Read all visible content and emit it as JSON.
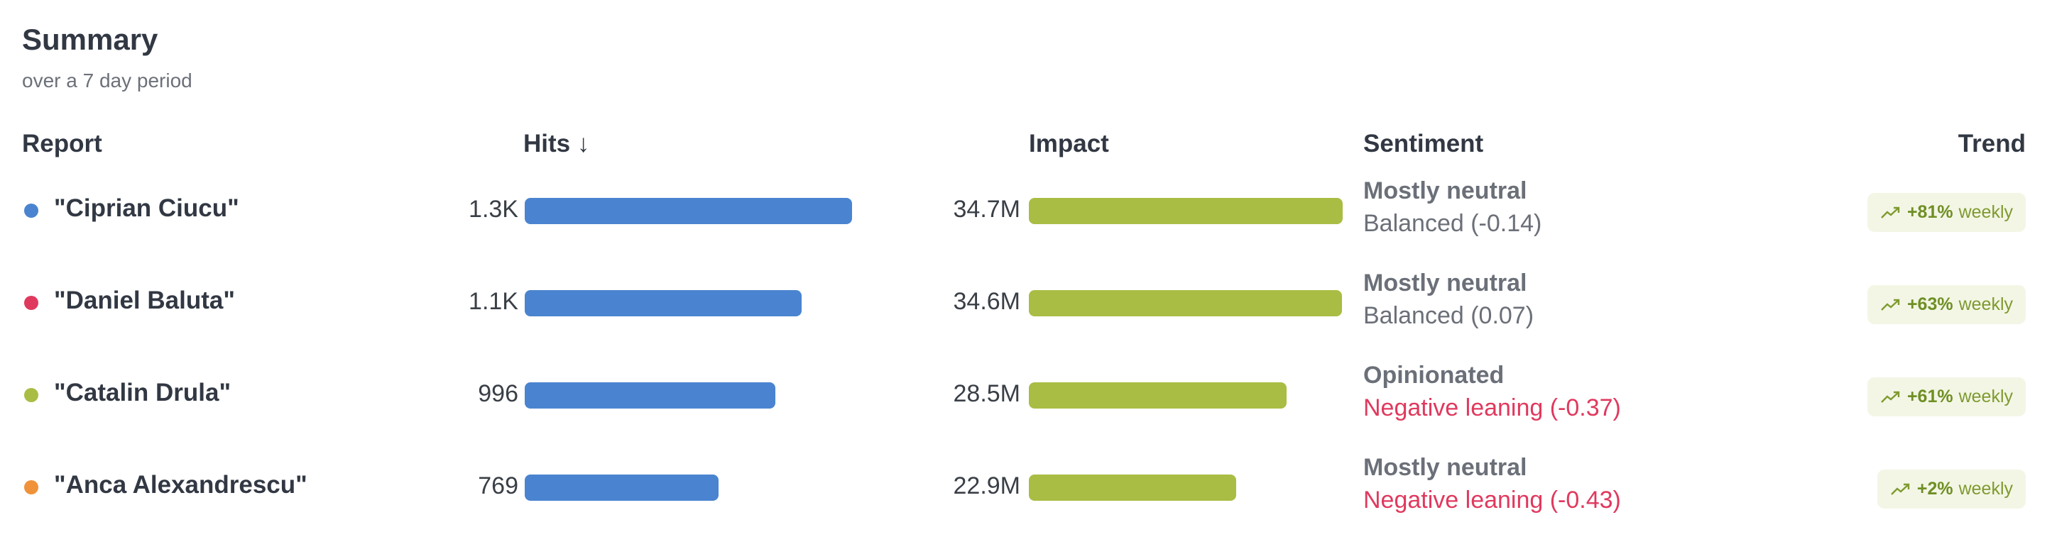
{
  "header": {
    "title": "Summary",
    "subtitle": "over a 7 day period"
  },
  "columns": {
    "report": "Report",
    "hits": "Hits ↓",
    "impact": "Impact",
    "sentiment": "Sentiment",
    "trend": "Trend"
  },
  "colors": {
    "hits_bar": "#4a84d0",
    "impact_bar": "#a9bd44",
    "negative": "#e0395e",
    "neutral": "#6b6f78"
  },
  "rows": [
    {
      "name": "\"Ciprian Ciucu\"",
      "dot_color": "#4a84d0",
      "hits": "1.3K",
      "hits_value": 1300,
      "impact": "34.7M",
      "impact_value": 34.7,
      "sentiment": "Mostly neutral",
      "leaning": "Balanced (-0.14)",
      "leaning_negative": false,
      "trend_pct": "+81%",
      "trend_period": "weekly",
      "trend_icon": "trending-up-icon"
    },
    {
      "name": "\"Daniel Baluta\"",
      "dot_color": "#e0395e",
      "hits": "1.1K",
      "hits_value": 1100,
      "impact": "34.6M",
      "impact_value": 34.6,
      "sentiment": "Mostly neutral",
      "leaning": "Balanced (0.07)",
      "leaning_negative": false,
      "trend_pct": "+63%",
      "trend_period": "weekly",
      "trend_icon": "trending-up-icon"
    },
    {
      "name": "\"Catalin Drula\"",
      "dot_color": "#a9bd44",
      "hits": "996",
      "hits_value": 996,
      "impact": "28.5M",
      "impact_value": 28.5,
      "sentiment": "Opinionated",
      "leaning": "Negative leaning (-0.37)",
      "leaning_negative": true,
      "trend_pct": "+61%",
      "trend_period": "weekly",
      "trend_icon": "trending-up-icon"
    },
    {
      "name": "\"Anca Alexandrescu\"",
      "dot_color": "#f0923a",
      "hits": "769",
      "hits_value": 769,
      "impact": "22.9M",
      "impact_value": 22.9,
      "sentiment": "Mostly neutral",
      "leaning": "Negative leaning (-0.43)",
      "leaning_negative": true,
      "trend_pct": "+2%",
      "trend_period": "weekly",
      "trend_icon": "trending-up-icon"
    }
  ]
}
